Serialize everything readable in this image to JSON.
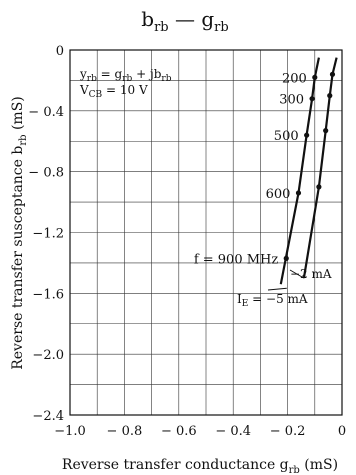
{
  "chart_data": {
    "type": "line",
    "title": {
      "main": "b",
      "main_sub": "rb",
      "sep": " — ",
      "main2": "g",
      "main2_sub": "rb"
    },
    "xlabel": {
      "text": "Reverse transfer conductance  g",
      "sub": "rb",
      "unit": " (mS)"
    },
    "ylabel": {
      "text": "Reverse transfer susceptance  b",
      "sub": "rb",
      "unit": "  (mS)"
    },
    "xlim": [
      -1.0,
      0
    ],
    "ylim": [
      -2.4,
      0
    ],
    "x_ticks": [
      "−1.0",
      "− 0.8",
      "− 0.6",
      "− 0.4",
      "− 0.2",
      "0"
    ],
    "x_tick_values": [
      -1.0,
      -0.8,
      -0.6,
      -0.4,
      -0.2,
      0
    ],
    "y_ticks": [
      "0",
      "− 0.4",
      "− 0.8",
      "−1.2",
      "−1.6",
      "−2.0",
      "−2.4"
    ],
    "y_tick_values": [
      0,
      -0.4,
      -0.8,
      -1.2,
      -1.6,
      -2.0,
      -2.4
    ],
    "grid": true,
    "annotation_formula": {
      "a": "y",
      "a_sub": "rb",
      "b": " = g",
      "b_sub": "rb",
      "c": " + jb",
      "c_sub": "rb"
    },
    "annotation_vcb": {
      "a": "V",
      "a_sub": "CB",
      "b": " = 10 V"
    },
    "series": [
      {
        "name": "−5 mA",
        "label": {
          "a": "I",
          "a_sub": "E",
          "b": " = −5 mA"
        },
        "x": [
          -0.225,
          -0.16,
          -0.13,
          -0.11,
          -0.1,
          -0.085
        ],
        "y": [
          -1.54,
          -0.94,
          -0.56,
          -0.32,
          -0.18,
          -0.05
        ]
      },
      {
        "name": "−2 mA",
        "label": {
          "a": "−2 mA"
        },
        "x": [
          -0.14,
          -0.085,
          -0.06,
          -0.045,
          -0.035,
          -0.02
        ],
        "y": [
          -1.5,
          -0.9,
          -0.53,
          -0.3,
          -0.16,
          -0.05
        ]
      }
    ],
    "frequency_points": [
      {
        "label": "200",
        "x": [
          -0.1,
          -0.035
        ],
        "y": [
          -0.18,
          -0.16
        ]
      },
      {
        "label": "300",
        "x": [
          -0.11,
          -0.045
        ],
        "y": [
          -0.32,
          -0.3
        ]
      },
      {
        "label": "500",
        "x": [
          -0.13,
          -0.06
        ],
        "y": [
          -0.56,
          -0.53
        ]
      },
      {
        "label": "600",
        "x": [
          -0.16,
          -0.085
        ],
        "y": [
          -0.94,
          -0.9
        ]
      },
      {
        "label": "f = 900 MHz",
        "x": [
          -0.205
        ],
        "y": [
          -1.37
        ]
      }
    ]
  }
}
